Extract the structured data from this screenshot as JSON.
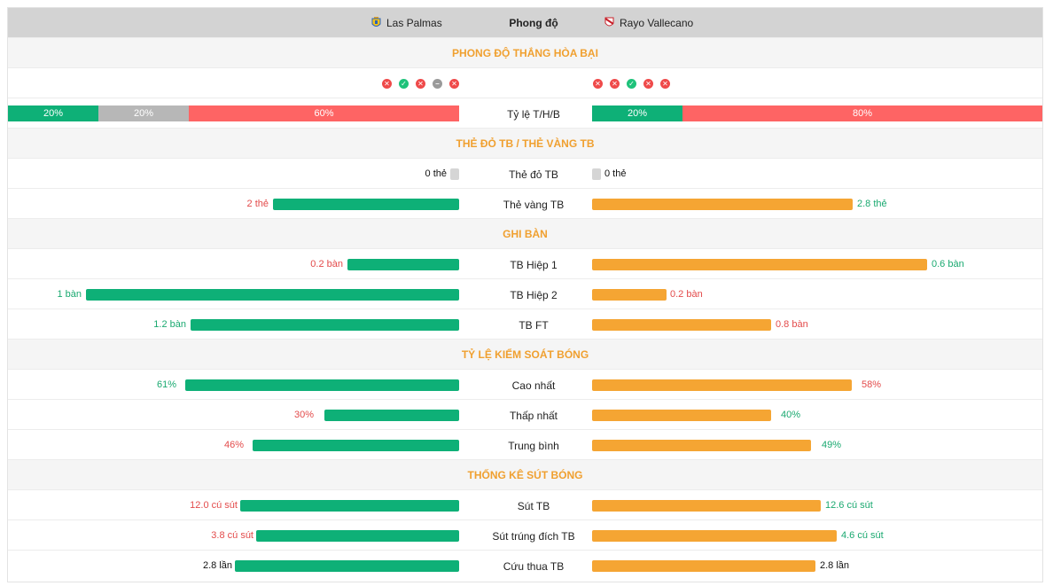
{
  "header": {
    "home_team": "Las Palmas",
    "away_team": "Rayo Vallecano",
    "center": "Phong độ"
  },
  "sections": {
    "form": "PHONG ĐỘ THẮNG HÒA BẠI",
    "cards": "THẺ ĐỎ TB / THẺ VÀNG TB",
    "goals": "GHI BÀN",
    "possession": "TỶ LỆ KIỂM SOÁT BÓNG",
    "shots": "THỐNG KÊ SÚT BÓNG"
  },
  "form": {
    "home": [
      "loss",
      "win",
      "loss",
      "draw",
      "loss"
    ],
    "away": [
      "loss",
      "loss",
      "win",
      "loss",
      "loss"
    ]
  },
  "wdl": {
    "label": "Tỷ lệ T/H/B",
    "home": [
      {
        "type": "win",
        "pct": 20,
        "text": "20%"
      },
      {
        "type": "draw",
        "pct": 20,
        "text": "20%"
      },
      {
        "type": "loss",
        "pct": 60,
        "text": "60%"
      }
    ],
    "away": [
      {
        "type": "win",
        "pct": 20,
        "text": "20%"
      },
      {
        "type": "loss",
        "pct": 80,
        "text": "80%"
      }
    ]
  },
  "stats": {
    "red_cards": {
      "label": "Thẻ đỏ TB",
      "home": 0,
      "home_text": "0 thẻ",
      "away": 0,
      "away_text": "0 thẻ"
    },
    "yellow_cards": {
      "label": "Thẻ vàng TB",
      "home": 2,
      "home_text": "2 thẻ",
      "away": 2.8,
      "away_text": "2.8 thẻ"
    },
    "half1": {
      "label": "TB Hiệp 1",
      "home": 0.2,
      "home_text": "0.2 bàn",
      "away": 0.6,
      "away_text": "0.6 bàn"
    },
    "half2": {
      "label": "TB Hiệp 2",
      "home": 1,
      "home_text": "1 bàn",
      "away": 0.2,
      "away_text": "0.2 bàn"
    },
    "ft": {
      "label": "TB FT",
      "home": 1.2,
      "home_text": "1.2 bàn",
      "away": 0.8,
      "away_text": "0.8 bàn"
    },
    "poss_high": {
      "label": "Cao nhất",
      "home": 61,
      "home_text": "61%",
      "away": 58,
      "away_text": "58%"
    },
    "poss_low": {
      "label": "Thấp nhất",
      "home": 30,
      "home_text": "30%",
      "away": 40,
      "away_text": "40%"
    },
    "poss_avg": {
      "label": "Trung bình",
      "home": 46,
      "home_text": "46%",
      "away": 49,
      "away_text": "49%"
    },
    "shots": {
      "label": "Sút TB",
      "home": 12.0,
      "home_text": "12.0 cú sút",
      "away": 12.6,
      "away_text": "12.6 cú sút"
    },
    "shots_on": {
      "label": "Sút trúng đích TB",
      "home": 3.8,
      "home_text": "3.8 cú sút",
      "away": 4.6,
      "away_text": "4.6 cú sút"
    },
    "saves": {
      "label": "Cứu thua TB",
      "home": 2.8,
      "home_text": "2.8 lần",
      "away": 2.8,
      "away_text": "2.8 lần"
    }
  },
  "colors": {
    "home_bar": "#0eb077",
    "away_bar": "#f5a533",
    "section_title": "#f0a030",
    "win": "#0eb077",
    "draw": "#b7b7b7",
    "loss": "#fe6464"
  }
}
